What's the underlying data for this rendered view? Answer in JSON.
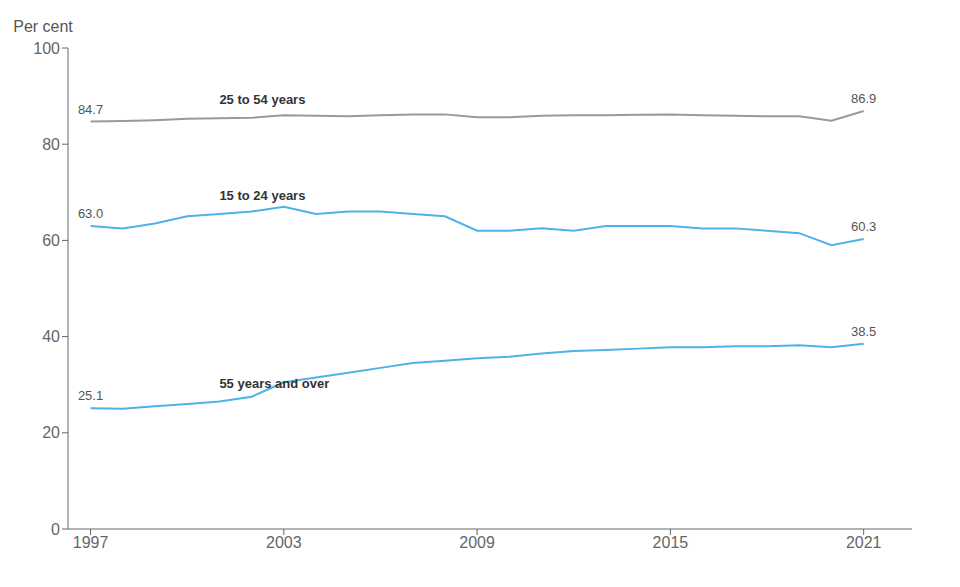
{
  "chart_data": {
    "type": "line",
    "y_label": "Per cent",
    "x": [
      1997,
      1998,
      1999,
      2000,
      2001,
      2002,
      2003,
      2004,
      2005,
      2006,
      2007,
      2008,
      2009,
      2010,
      2011,
      2012,
      2013,
      2014,
      2015,
      2016,
      2017,
      2018,
      2019,
      2020,
      2021
    ],
    "series": [
      {
        "name": "25 to 54 years",
        "color": "#999999",
        "values": [
          84.7,
          84.8,
          85.0,
          85.3,
          85.4,
          85.5,
          86.0,
          85.9,
          85.8,
          86.0,
          86.2,
          86.2,
          85.6,
          85.6,
          85.9,
          86.0,
          86.0,
          86.1,
          86.2,
          86.0,
          85.9,
          85.8,
          85.8,
          84.9,
          86.9
        ]
      },
      {
        "name": "15 to 24 years",
        "color": "#4db3e6",
        "values": [
          63.0,
          62.5,
          63.5,
          65.0,
          65.5,
          66.0,
          67.0,
          65.5,
          66.0,
          66.0,
          65.5,
          65.0,
          62.0,
          62.0,
          62.5,
          62.0,
          63.0,
          63.0,
          63.0,
          62.5,
          62.5,
          62.0,
          61.5,
          59.0,
          60.3
        ]
      },
      {
        "name": "55 years and over",
        "color": "#4db3e6",
        "values": [
          25.1,
          25.0,
          25.5,
          26.0,
          26.5,
          27.5,
          30.5,
          31.5,
          32.5,
          33.5,
          34.5,
          35.0,
          35.5,
          35.8,
          36.5,
          37.0,
          37.2,
          37.5,
          37.8,
          37.8,
          38.0,
          38.0,
          38.2,
          37.8,
          38.5
        ]
      }
    ],
    "annotations": [
      {
        "x": 1997,
        "y": 84.7,
        "text": "84.7"
      },
      {
        "x": 2021,
        "y": 86.9,
        "text": "86.9"
      },
      {
        "x": 1997,
        "y": 63.0,
        "text": "63.0"
      },
      {
        "x": 2021,
        "y": 60.3,
        "text": "60.3"
      },
      {
        "x": 1997,
        "y": 25.1,
        "text": "25.1"
      },
      {
        "x": 2021,
        "y": 38.5,
        "text": "38.5"
      }
    ],
    "xlim": [
      1996.3,
      2022.5
    ],
    "xticks": [
      1997,
      2003,
      2009,
      2015,
      2021
    ],
    "ylim": [
      0,
      100
    ],
    "yticks": [
      0,
      20,
      40,
      60,
      80,
      100
    ],
    "grid": false
  }
}
